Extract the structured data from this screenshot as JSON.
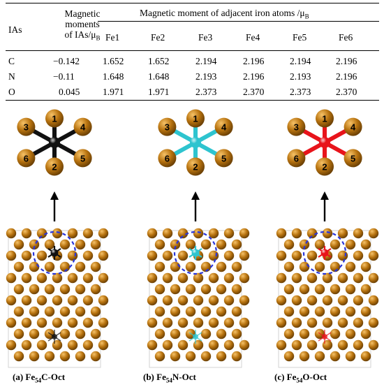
{
  "table": {
    "col_ias": "IAs",
    "col_mag_lines": [
      "Magnetic",
      "moments",
      "of IAs/μ",
      "B"
    ],
    "group_header": "Magnetic moment of adjacent iron atoms /μ",
    "group_header_sub": "B",
    "fe_headers": [
      "Fe1",
      "Fe2",
      "Fe3",
      "Fe4",
      "Fe5",
      "Fe6"
    ],
    "rows": [
      {
        "ia": "C",
        "moment": "−0.142",
        "fe": [
          "1.652",
          "1.652",
          "2.194",
          "2.196",
          "2.194",
          "2.196"
        ]
      },
      {
        "ia": "N",
        "moment": "−0.11",
        "fe": [
          "1.648",
          "1.648",
          "2.193",
          "2.196",
          "2.193",
          "2.196"
        ]
      },
      {
        "ia": "O",
        "moment": "0.045",
        "fe": [
          "1.971",
          "1.971",
          "2.373",
          "2.370",
          "2.373",
          "2.370"
        ]
      }
    ]
  },
  "panels": [
    {
      "prefix": "(a) Fe",
      "sub": "54",
      "suffix": "C-Oct",
      "center_color": "#111111",
      "bond_color": "#111111"
    },
    {
      "prefix": "(b) Fe",
      "sub": "54",
      "suffix": "N-Oct",
      "center_color": "#2ec4cf",
      "bond_color": "#2ec4cf"
    },
    {
      "prefix": "(c) Fe",
      "sub": "54",
      "suffix": "O-Oct",
      "center_color": "#e8141b",
      "bond_color": "#e8141b"
    }
  ],
  "atom_labels": [
    "1",
    "2",
    "3",
    "4",
    "5",
    "6"
  ],
  "colors": {
    "iron": "#b8730f",
    "iron_highlight": "#f6c268",
    "iron_dark": "#6e4205",
    "dashed_circle": "#2b36d9"
  }
}
